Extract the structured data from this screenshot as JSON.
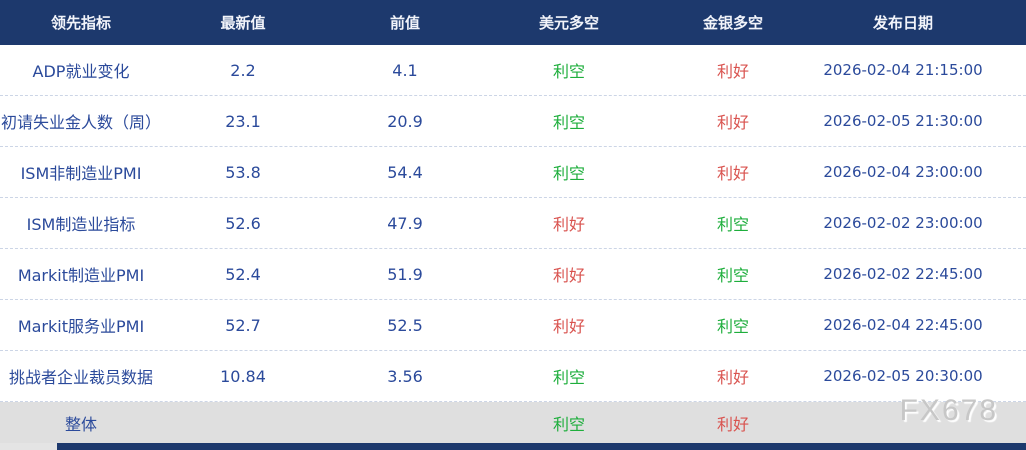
{
  "colors": {
    "header_bg": "#1d396d",
    "header_text": "#f2f4fa",
    "body_bg": "#ffffff",
    "body_text": "#2b4a9b",
    "green": "#1eae3c",
    "red": "#d9534f",
    "divider": "#ccd5e6",
    "overall_row_bg": "#dfdfdf",
    "bottom_bar": "#1d396d"
  },
  "table": {
    "columns": [
      "领先指标",
      "最新值",
      "前值",
      "美元多空",
      "金银多空",
      "发布日期"
    ],
    "rows": [
      {
        "indicator": "ADP就业变化",
        "latest": "2.2",
        "previous": "4.1",
        "usd": "利空",
        "usd_class": "green",
        "gold": "利好",
        "gold_class": "red",
        "date": "2026-02-04 21:15:00"
      },
      {
        "indicator": "初请失业金人数（周）",
        "latest": "23.1",
        "previous": "20.9",
        "usd": "利空",
        "usd_class": "green",
        "gold": "利好",
        "gold_class": "red",
        "date": "2026-02-05 21:30:00"
      },
      {
        "indicator": "ISM非制造业PMI",
        "latest": "53.8",
        "previous": "54.4",
        "usd": "利空",
        "usd_class": "green",
        "gold": "利好",
        "gold_class": "red",
        "date": "2026-02-04 23:00:00"
      },
      {
        "indicator": "ISM制造业指标",
        "latest": "52.6",
        "previous": "47.9",
        "usd": "利好",
        "usd_class": "red",
        "gold": "利空",
        "gold_class": "green",
        "date": "2026-02-02 23:00:00"
      },
      {
        "indicator": "Markit制造业PMI",
        "latest": "52.4",
        "previous": "51.9",
        "usd": "利好",
        "usd_class": "red",
        "gold": "利空",
        "gold_class": "green",
        "date": "2026-02-02 22:45:00"
      },
      {
        "indicator": "Markit服务业PMI",
        "latest": "52.7",
        "previous": "52.5",
        "usd": "利好",
        "usd_class": "red",
        "gold": "利空",
        "gold_class": "green",
        "date": "2026-02-04 22:45:00"
      },
      {
        "indicator": "挑战者企业裁员数据",
        "latest": "10.84",
        "previous": "3.56",
        "usd": "利空",
        "usd_class": "green",
        "gold": "利好",
        "gold_class": "red",
        "date": "2026-02-05 20:30:00"
      }
    ],
    "overall": {
      "indicator": "整体",
      "latest": "",
      "previous": "",
      "usd": "利空",
      "usd_class": "green",
      "gold": "利好",
      "gold_class": "red",
      "date": ""
    }
  },
  "watermark": "FX678",
  "chart_data": {
    "type": "table",
    "title": "",
    "columns": [
      "领先指标",
      "最新值",
      "前值",
      "美元多空",
      "金银多空",
      "发布日期"
    ],
    "rows": [
      [
        "ADP就业变化",
        2.2,
        4.1,
        "利空",
        "利好",
        "2026-02-04 21:15:00"
      ],
      [
        "初请失业金人数（周）",
        23.1,
        20.9,
        "利空",
        "利好",
        "2026-02-05 21:30:00"
      ],
      [
        "ISM非制造业PMI",
        53.8,
        54.4,
        "利空",
        "利好",
        "2026-02-04 23:00:00"
      ],
      [
        "ISM制造业指标",
        52.6,
        47.9,
        "利好",
        "利空",
        "2026-02-02 23:00:00"
      ],
      [
        "Markit制造业PMI",
        52.4,
        51.9,
        "利好",
        "利空",
        "2026-02-02 22:45:00"
      ],
      [
        "Markit服务业PMI",
        52.7,
        52.5,
        "利好",
        "利空",
        "2026-02-04 22:45:00"
      ],
      [
        "挑战者企业裁员数据",
        10.84,
        3.56,
        "利空",
        "利好",
        "2026-02-05 20:30:00"
      ],
      [
        "整体",
        null,
        null,
        "利空",
        "利好",
        null
      ]
    ],
    "legend": {
      "利好": "red #d9534f",
      "利空": "green #1eae3c"
    }
  }
}
